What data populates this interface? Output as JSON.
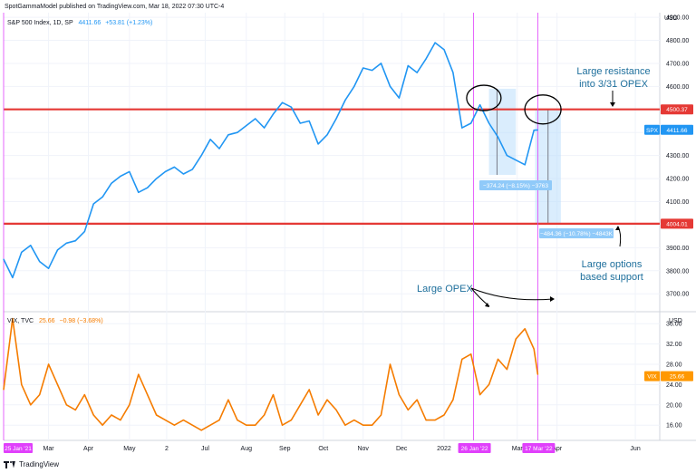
{
  "header": {
    "publisher": "SpotGammaModel published on TradingView.com, Mar 18, 2022 07:30 UTC-4",
    "currency": "USD"
  },
  "spx_panel": {
    "symbol": "S&P 500 Index, 1D, SP",
    "last": "4411.66",
    "change": "+53.81 (+1.23%)",
    "price_tag": "SPX",
    "price_value": "4411.66",
    "resistance_label": "4500.37",
    "support_label": "4004.01"
  },
  "vix_panel": {
    "symbol": "VIX, TVC",
    "last": "25.66",
    "change": "−0.98 (−3.68%)",
    "currency": "USD",
    "price_tag": "VIX",
    "price_value": "25.66"
  },
  "annotations": {
    "resistance": "Large resistance\ninto 3/31 OPEX",
    "support": "Large options\nbased support",
    "opex": "Large OPEX",
    "measure1": "−374.24 (−8.15%) −3763",
    "measure2": "−484.36 (−10.78%) −4843K"
  },
  "time_axis": {
    "labels": [
      "Mar",
      "Apr",
      "May",
      "2",
      "Jul",
      "Aug",
      "Sep",
      "Oct",
      "Nov",
      "Dec",
      "2022",
      "Mar",
      "Apr",
      "Jun"
    ],
    "start_tag": "25 Jan '21",
    "marker1_tag": "26 Jan '22",
    "marker2_tag": "17 Mar '22"
  },
  "footer": {
    "brand": "TradingView"
  },
  "colors": {
    "spx_line": "#2196f3",
    "vix_line": "#f57c00",
    "level_line": "#e53935",
    "marker_line": "#e040fb",
    "annotation_text": "#1e6f9c",
    "measure_box": "#bbdefb"
  },
  "chart_data": [
    {
      "type": "line",
      "name": "S&P 500 Index, 1D, SP",
      "y_ticks": [
        3700,
        3800,
        3900,
        4000,
        4100,
        4200,
        4300,
        4400,
        4500,
        4600,
        4700,
        4800,
        4900
      ],
      "ylim": [
        3630,
        4920
      ],
      "x_start": "2021-01-25",
      "x_end": "2022-03-18",
      "levels": [
        4500.37,
        4004.01
      ],
      "x": [
        "2021-01-25",
        "2021-02-01",
        "2021-02-08",
        "2021-02-15",
        "2021-02-22",
        "2021-03-01",
        "2021-03-08",
        "2021-03-15",
        "2021-03-22",
        "2021-03-29",
        "2021-04-05",
        "2021-04-12",
        "2021-04-19",
        "2021-04-26",
        "2021-05-03",
        "2021-05-10",
        "2021-05-17",
        "2021-05-24",
        "2021-05-31",
        "2021-06-07",
        "2021-06-14",
        "2021-06-21",
        "2021-06-28",
        "2021-07-05",
        "2021-07-12",
        "2021-07-19",
        "2021-07-26",
        "2021-08-02",
        "2021-08-09",
        "2021-08-16",
        "2021-08-23",
        "2021-08-30",
        "2021-09-06",
        "2021-09-13",
        "2021-09-20",
        "2021-09-27",
        "2021-10-04",
        "2021-10-11",
        "2021-10-18",
        "2021-10-25",
        "2021-11-01",
        "2021-11-08",
        "2021-11-15",
        "2021-11-22",
        "2021-11-29",
        "2021-12-06",
        "2021-12-13",
        "2021-12-20",
        "2021-12-27",
        "2022-01-03",
        "2022-01-10",
        "2022-01-17",
        "2022-01-24",
        "2022-01-31",
        "2022-02-07",
        "2022-02-14",
        "2022-02-21",
        "2022-02-28",
        "2022-03-07",
        "2022-03-14",
        "2022-03-17"
      ],
      "values": [
        3850,
        3770,
        3880,
        3910,
        3840,
        3810,
        3890,
        3920,
        3930,
        3970,
        4090,
        4120,
        4180,
        4210,
        4230,
        4140,
        4160,
        4200,
        4230,
        4250,
        4220,
        4240,
        4300,
        4370,
        4330,
        4390,
        4400,
        4430,
        4460,
        4420,
        4480,
        4530,
        4510,
        4440,
        4450,
        4350,
        4390,
        4460,
        4540,
        4600,
        4680,
        4670,
        4700,
        4600,
        4550,
        4690,
        4660,
        4720,
        4790,
        4760,
        4660,
        4420,
        4440,
        4520,
        4440,
        4380,
        4300,
        4280,
        4260,
        4410,
        4411
      ]
    },
    {
      "type": "line",
      "name": "VIX, TVC",
      "y_ticks": [
        16.0,
        20.0,
        24.0,
        28.0,
        32.0,
        36.0
      ],
      "ylim": [
        13,
        38
      ],
      "x_start": "2021-01-25",
      "x_end": "2022-03-18",
      "x": [
        "2021-01-25",
        "2021-02-01",
        "2021-02-08",
        "2021-02-15",
        "2021-02-22",
        "2021-03-01",
        "2021-03-08",
        "2021-03-15",
        "2021-03-22",
        "2021-03-29",
        "2021-04-05",
        "2021-04-12",
        "2021-04-19",
        "2021-04-26",
        "2021-05-03",
        "2021-05-10",
        "2021-05-17",
        "2021-05-24",
        "2021-05-31",
        "2021-06-07",
        "2021-06-14",
        "2021-06-21",
        "2021-06-28",
        "2021-07-05",
        "2021-07-12",
        "2021-07-19",
        "2021-07-26",
        "2021-08-02",
        "2021-08-09",
        "2021-08-16",
        "2021-08-23",
        "2021-08-30",
        "2021-09-06",
        "2021-09-13",
        "2021-09-20",
        "2021-09-27",
        "2021-10-04",
        "2021-10-11",
        "2021-10-18",
        "2021-10-25",
        "2021-11-01",
        "2021-11-08",
        "2021-11-15",
        "2021-11-22",
        "2021-11-29",
        "2021-12-06",
        "2021-12-13",
        "2021-12-20",
        "2021-12-27",
        "2022-01-03",
        "2022-01-10",
        "2022-01-17",
        "2022-01-24",
        "2022-01-31",
        "2022-02-07",
        "2022-02-14",
        "2022-02-21",
        "2022-02-28",
        "2022-03-07",
        "2022-03-14",
        "2022-03-17"
      ],
      "values": [
        23,
        37,
        24,
        20,
        22,
        28,
        24,
        20,
        19,
        22,
        18,
        16,
        18,
        17,
        20,
        26,
        22,
        18,
        17,
        16,
        17,
        16,
        15,
        16,
        17,
        21,
        17,
        16,
        16,
        18,
        22,
        16,
        17,
        20,
        23,
        18,
        21,
        19,
        16,
        17,
        16,
        16,
        18,
        28,
        22,
        19,
        21,
        17,
        17,
        18,
        21,
        29,
        30,
        22,
        24,
        29,
        27,
        33,
        35,
        31,
        26
      ]
    }
  ]
}
